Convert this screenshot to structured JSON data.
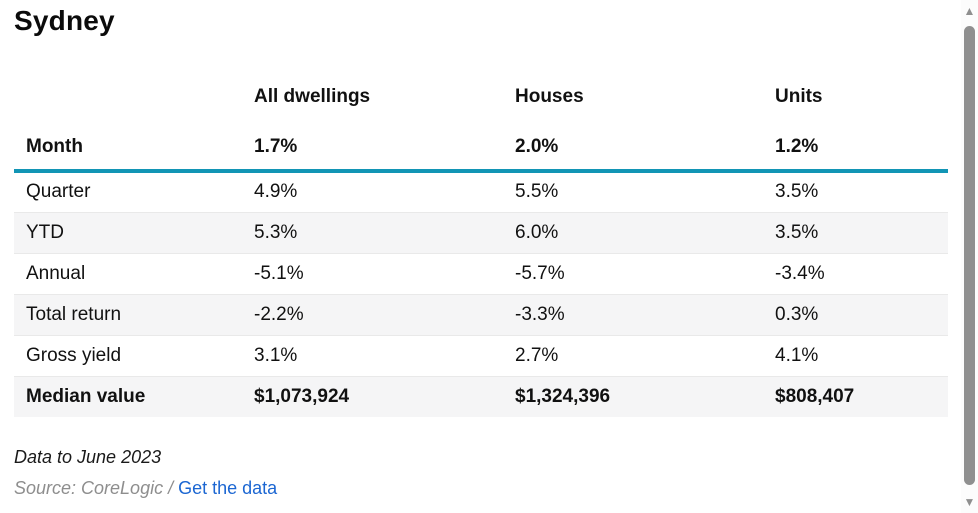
{
  "page": {
    "title": "Sydney"
  },
  "table": {
    "column_headers": [
      "All dwellings",
      "Houses",
      "Units"
    ],
    "month_row": {
      "label": "Month",
      "values": [
        "1.7%",
        "2.0%",
        "1.2%"
      ]
    },
    "rows": [
      {
        "label": "Quarter",
        "values": [
          "4.9%",
          "5.5%",
          "3.5%"
        ]
      },
      {
        "label": "YTD",
        "values": [
          "5.3%",
          "6.0%",
          "3.5%"
        ]
      },
      {
        "label": "Annual",
        "values": [
          "-5.1%",
          "-5.7%",
          "-3.4%"
        ]
      },
      {
        "label": "Total return",
        "values": [
          "-2.2%",
          "-3.3%",
          "0.3%"
        ]
      },
      {
        "label": "Gross yield",
        "values": [
          "3.1%",
          "2.7%",
          "4.1%"
        ]
      },
      {
        "label": "Median value",
        "values": [
          "$1,073,924",
          "$1,324,396",
          "$808,407"
        ]
      }
    ]
  },
  "footer": {
    "data_note": "Data to June 2023",
    "source_prefix": "Source: CoreLogic / ",
    "link_label": "Get the data"
  },
  "colors": {
    "accent_teal": "#1295b5",
    "link_blue": "#1b66d2",
    "row_stripe": "#f5f5f6",
    "scrollbar_gray": "#8f8f8f"
  },
  "icons": {
    "scroll_up": "▲",
    "scroll_down": "▼"
  }
}
